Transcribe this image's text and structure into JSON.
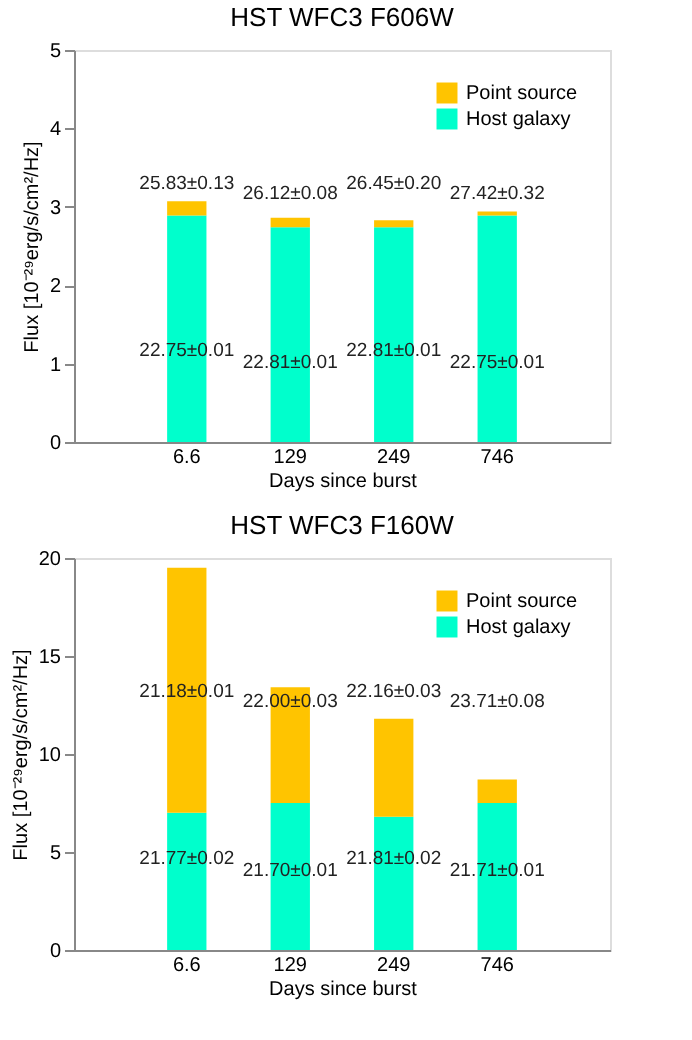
{
  "chart_data": [
    {
      "type": "bar",
      "title": "HST WFC3 F606W",
      "xlabel": "Days since burst",
      "ylabel": "Flux [10⁻²⁹erg/s/cm²/Hz]",
      "categories": [
        "6.6",
        "129",
        "249",
        "746"
      ],
      "stacked": true,
      "ylim": [
        0,
        5
      ],
      "yticks": [
        0,
        1,
        2,
        3,
        4,
        5
      ],
      "legend": "top right",
      "series": [
        {
          "name": "Host galaxy",
          "color": "#00ffcc",
          "values": [
            2.89,
            2.74,
            2.74,
            2.89
          ]
        },
        {
          "name": "Point source",
          "color": "#ffc400",
          "values": [
            0.18,
            0.12,
            0.09,
            0.05
          ]
        }
      ],
      "annotations": [
        "22.75±0.01",
        "22.81±0.01",
        "22.81±0.01",
        "22.75±0.01",
        "25.83±0.13",
        "26.12±0.08",
        "26.45±0.20",
        "27.42±0.32"
      ]
    },
    {
      "type": "bar",
      "title": "HST WFC3 F160W",
      "xlabel": "Days since burst",
      "ylabel": "Flux [10⁻²⁹erg/s/cm²/Hz]",
      "categories": [
        "6.6",
        "129",
        "249",
        "746"
      ],
      "stacked": true,
      "ylim": [
        0,
        20
      ],
      "yticks": [
        0,
        5,
        10,
        15,
        20
      ],
      "legend": "top right",
      "series": [
        {
          "name": "Host galaxy",
          "color": "#00ffcc",
          "values": [
            7.0,
            7.5,
            6.8,
            7.5
          ]
        },
        {
          "name": "Point source",
          "color": "#ffc400",
          "values": [
            12.5,
            5.9,
            5.0,
            1.2
          ]
        }
      ],
      "annotations": [
        "21.77±0.02",
        "21.70±0.01",
        "21.81±0.02",
        "21.71±0.01",
        "21.18±0.01",
        "22.00±0.03",
        "22.16±0.03",
        "23.71±0.08"
      ]
    }
  ]
}
